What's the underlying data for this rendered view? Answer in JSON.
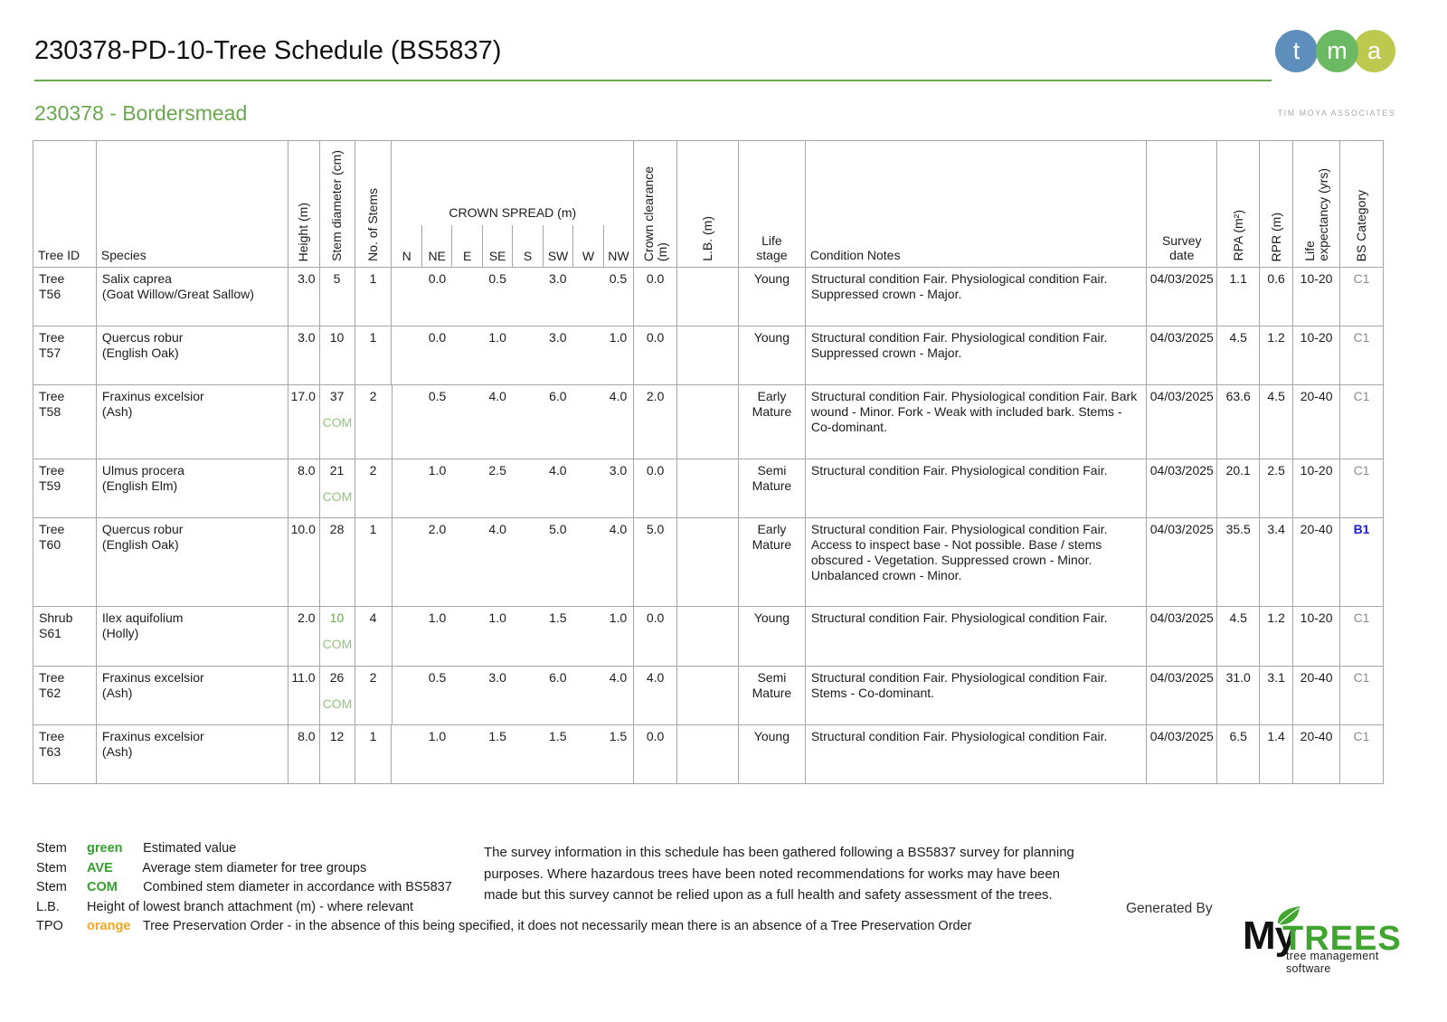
{
  "page": {
    "title": "230378-PD-10-Tree Schedule (BS5837)",
    "subtitle": "230378 - Bordersmead"
  },
  "tma_logo": {
    "circles": [
      {
        "letter": "t",
        "color": "#5e8fbc"
      },
      {
        "letter": "m",
        "color": "#6cb964"
      },
      {
        "letter": "a",
        "color": "#bdc94e"
      }
    ],
    "caption": "TIM MOYA ASSOCIATES"
  },
  "table": {
    "headers": {
      "tree_id": "Tree ID",
      "species": "Species",
      "height": "Height (m)",
      "stem_diameter": "Stem diameter (cm)",
      "no_of_stems": "No. of Stems",
      "crown_spread": "CROWN SPREAD (m)",
      "crown_clearance": "Crown clearance\n(m)",
      "lb": "L.B. (m)",
      "life_stage": "Life\nstage",
      "condition_notes": "Condition Notes",
      "survey_date": "Survey\ndate",
      "rpa": "RPA (m²)",
      "rpr": "RPR (m)",
      "life_expectancy": "Life\nexpectancy (yrs)",
      "bs_category": "BS Category"
    },
    "crown_directions": [
      "N",
      "NE",
      "E",
      "SE",
      "S",
      "SW",
      "W",
      "NW"
    ],
    "rows": [
      {
        "id_type": "Tree",
        "id_tag": "T56",
        "species": "Salix caprea",
        "common_name": "(Goat Willow/Great Sallow)",
        "height": "3.0",
        "stem_diameter": "5",
        "stem_diameter_estimated": false,
        "stem_label": "",
        "no_of_stems": "1",
        "crown_spread_slots": [
          "",
          "0.0",
          "",
          "0.5",
          "",
          "3.0",
          "",
          "0.5"
        ],
        "crown_clearance": "0.0",
        "lowest_branch": "",
        "life_stage": "Young",
        "condition_notes": "Structural condition Fair. Physiological condition Fair. Suppressed crown - Major.",
        "survey_date": "04/03/2025",
        "rpa": "1.1",
        "rpr": "0.6",
        "life_expectancy": "10-20",
        "bs_category": "C1",
        "bs_category_color": "gray"
      },
      {
        "id_type": "Tree",
        "id_tag": "T57",
        "species": "Quercus robur",
        "common_name": "(English Oak)",
        "height": "3.0",
        "stem_diameter": "10",
        "stem_diameter_estimated": false,
        "stem_label": "",
        "no_of_stems": "1",
        "crown_spread_slots": [
          "",
          "0.0",
          "",
          "1.0",
          "",
          "3.0",
          "",
          "1.0"
        ],
        "crown_clearance": "0.0",
        "lowest_branch": "",
        "life_stage": "Young",
        "condition_notes": "Structural condition Fair. Physiological condition Fair. Suppressed crown - Major.",
        "survey_date": "04/03/2025",
        "rpa": "4.5",
        "rpr": "1.2",
        "life_expectancy": "10-20",
        "bs_category": "C1",
        "bs_category_color": "gray"
      },
      {
        "id_type": "Tree",
        "id_tag": "T58",
        "species": "Fraxinus excelsior",
        "common_name": "(Ash)",
        "height": "17.0",
        "stem_diameter": "37",
        "stem_diameter_estimated": false,
        "stem_label": "COM",
        "no_of_stems": "2",
        "crown_spread_slots": [
          "",
          "0.5",
          "",
          "4.0",
          "",
          "6.0",
          "",
          "4.0"
        ],
        "crown_clearance": "2.0",
        "lowest_branch": "",
        "life_stage": "Early Mature",
        "condition_notes": "Structural condition Fair. Physiological condition Fair. Bark wound - Minor. Fork - Weak with included bark. Stems - Co-dominant.",
        "survey_date": "04/03/2025",
        "rpa": "63.6",
        "rpr": "4.5",
        "life_expectancy": "20-40",
        "bs_category": "C1",
        "bs_category_color": "gray"
      },
      {
        "id_type": "Tree",
        "id_tag": "T59",
        "species": "Ulmus procera",
        "common_name": "(English Elm)",
        "height": "8.0",
        "stem_diameter": "21",
        "stem_diameter_estimated": false,
        "stem_label": "COM",
        "no_of_stems": "2",
        "crown_spread_slots": [
          "",
          "1.0",
          "",
          "2.5",
          "",
          "4.0",
          "",
          "3.0"
        ],
        "crown_clearance": "0.0",
        "lowest_branch": "",
        "life_stage": "Semi Mature",
        "condition_notes": "Structural condition Fair. Physiological condition Fair.",
        "survey_date": "04/03/2025",
        "rpa": "20.1",
        "rpr": "2.5",
        "life_expectancy": "10-20",
        "bs_category": "C1",
        "bs_category_color": "gray"
      },
      {
        "id_type": "Tree",
        "id_tag": "T60",
        "species": "Quercus robur",
        "common_name": "(English Oak)",
        "height": "10.0",
        "stem_diameter": "28",
        "stem_diameter_estimated": false,
        "stem_label": "",
        "no_of_stems": "1",
        "crown_spread_slots": [
          "",
          "2.0",
          "",
          "4.0",
          "",
          "5.0",
          "",
          "4.0"
        ],
        "crown_clearance": "5.0",
        "lowest_branch": "",
        "life_stage": "Early Mature",
        "condition_notes": "Structural condition Fair. Physiological condition Fair. Access to inspect base - Not possible. Base / stems obscured - Vegetation. Suppressed crown - Minor. Unbalanced crown - Minor.",
        "survey_date": "04/03/2025",
        "rpa": "35.5",
        "rpr": "3.4",
        "life_expectancy": "20-40",
        "bs_category": "B1",
        "bs_category_color": "blue"
      },
      {
        "id_type": "Shrub",
        "id_tag": "S61",
        "species": "Ilex aquifolium",
        "common_name": "(Holly)",
        "height": "2.0",
        "stem_diameter": "10",
        "stem_diameter_estimated": true,
        "stem_label": "COM",
        "no_of_stems": "4",
        "crown_spread_slots": [
          "",
          "1.0",
          "",
          "1.0",
          "",
          "1.5",
          "",
          "1.0"
        ],
        "crown_clearance": "0.0",
        "lowest_branch": "",
        "life_stage": "Young",
        "condition_notes": "Structural condition Fair. Physiological condition Fair.",
        "survey_date": "04/03/2025",
        "rpa": "4.5",
        "rpr": "1.2",
        "life_expectancy": "10-20",
        "bs_category": "C1",
        "bs_category_color": "gray"
      },
      {
        "id_type": "Tree",
        "id_tag": "T62",
        "species": "Fraxinus excelsior",
        "common_name": "(Ash)",
        "height": "11.0",
        "stem_diameter": "26",
        "stem_diameter_estimated": false,
        "stem_label": "COM",
        "no_of_stems": "2",
        "crown_spread_slots": [
          "",
          "0.5",
          "",
          "3.0",
          "",
          "6.0",
          "",
          "4.0"
        ],
        "crown_clearance": "4.0",
        "lowest_branch": "",
        "life_stage": "Semi Mature",
        "condition_notes": "Structural condition Fair. Physiological condition Fair. Stems - Co-dominant.",
        "survey_date": "04/03/2025",
        "rpa": "31.0",
        "rpr": "3.1",
        "life_expectancy": "20-40",
        "bs_category": "C1",
        "bs_category_color": "gray"
      },
      {
        "id_type": "Tree",
        "id_tag": "T63",
        "species": "Fraxinus excelsior",
        "common_name": "(Ash)",
        "height": "8.0",
        "stem_diameter": "12",
        "stem_diameter_estimated": false,
        "stem_label": "",
        "no_of_stems": "1",
        "crown_spread_slots": [
          "",
          "1.0",
          "",
          "1.5",
          "",
          "1.5",
          "",
          "1.5"
        ],
        "crown_clearance": "0.0",
        "lowest_branch": "",
        "life_stage": "Young",
        "condition_notes": "Structural condition Fair. Physiological condition Fair.",
        "survey_date": "04/03/2025",
        "rpa": "6.5",
        "rpr": "1.4",
        "life_expectancy": "20-40",
        "bs_category": "C1",
        "bs_category_color": "gray"
      }
    ]
  },
  "legend": {
    "items": [
      {
        "term": "Stem",
        "value": "green",
        "value_color": "green",
        "description": "Estimated value"
      },
      {
        "term": "Stem",
        "value": "AVE",
        "value_color": "green",
        "description": "Average stem diameter for tree groups"
      },
      {
        "term": "Stem",
        "value": "COM",
        "value_color": "green",
        "description": "Combined stem diameter in accordance with BS5837"
      },
      {
        "term": "L.B.",
        "value": "",
        "value_color": "",
        "description": "Height of lowest branch attachment (m) - where relevant"
      },
      {
        "term": "TPO",
        "value": "orange",
        "value_color": "orange",
        "description": "Tree Preservation Order - in the absence of this being specified, it does not necessarily mean there is an absence of a Tree Preservation Order"
      }
    ]
  },
  "disclaimer": "The survey information in this schedule has been gathered following a BS5837 survey for planning purposes. Where hazardous trees have been noted recommendations for works may have been made but this survey cannot be relied upon as a full health and safety assessment of the trees.",
  "generated_by": {
    "label": "Generated By",
    "logo_my": "My",
    "logo_trees": "TREES",
    "tagline": "tree management software"
  },
  "colors": {
    "accent_green": "#6aa84f",
    "legend_green": "#33a02c",
    "estimated_green": "#6aa84f",
    "com_green": "#93c47d",
    "tpo_orange": "#f5a623",
    "bs_b_blue": "#2020cc",
    "bs_c_gray": "#8c8c8c",
    "tma_blue": "#5e8fbc",
    "tma_green": "#6cb964",
    "tma_yellow": "#bdc94e",
    "mytrees_green": "#3fa52f",
    "table_border": "#a6a6a6"
  }
}
